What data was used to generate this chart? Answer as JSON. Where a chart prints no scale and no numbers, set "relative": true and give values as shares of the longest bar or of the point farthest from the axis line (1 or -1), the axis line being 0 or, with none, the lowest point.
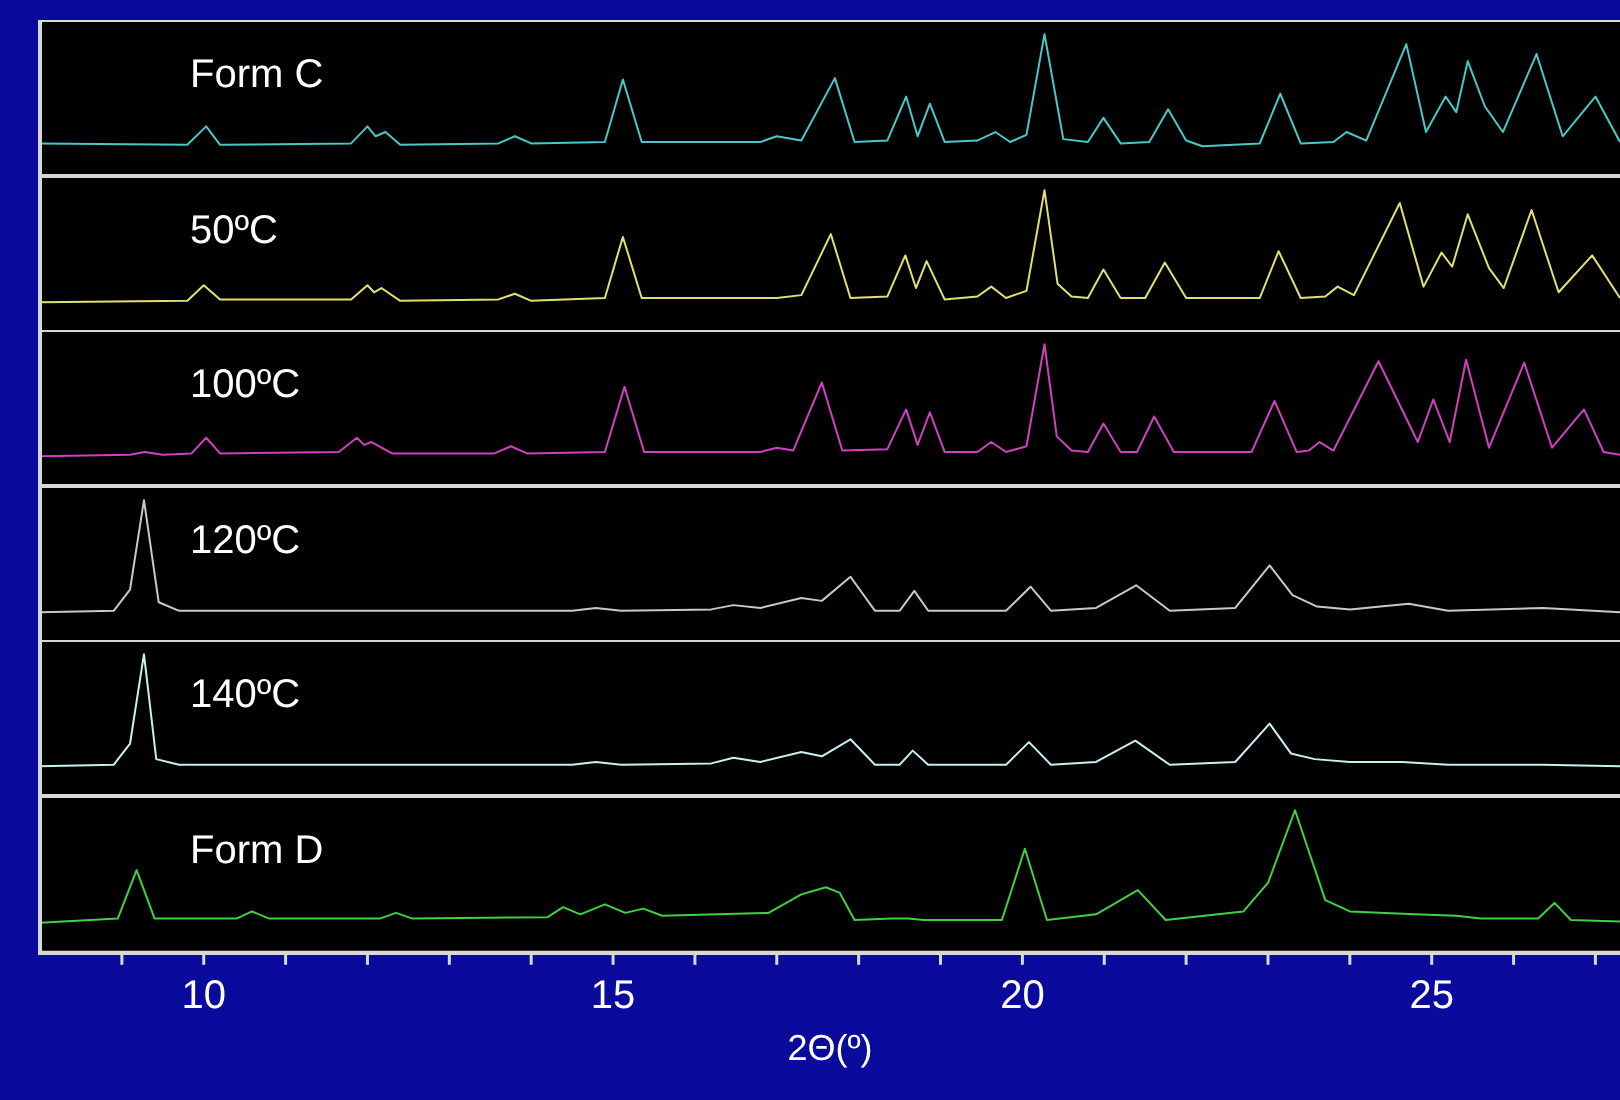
{
  "chart_data": [
    {
      "type": "line",
      "title": "Form C",
      "relative": true,
      "tick_labels": false,
      "color": "#48c8c8",
      "xlim": [
        8,
        27.3
      ],
      "x": [
        8.0,
        9.8,
        10.03,
        10.2,
        11.8,
        12.0,
        12.1,
        12.22,
        12.4,
        13.6,
        13.8,
        14.0,
        14.9,
        15.12,
        15.35,
        16.8,
        17.0,
        17.3,
        17.71,
        17.95,
        18.35,
        18.58,
        18.72,
        18.87,
        19.05,
        19.45,
        19.67,
        19.85,
        20.05,
        20.27,
        20.5,
        20.8,
        20.99,
        21.2,
        21.55,
        21.78,
        22.0,
        22.2,
        22.9,
        23.15,
        23.4,
        23.8,
        23.96,
        24.2,
        24.69,
        24.93,
        25.17,
        25.3,
        25.44,
        25.65,
        25.87,
        26.28,
        26.6,
        27.0,
        27.3
      ],
      "values": [
        0.23,
        0.22,
        0.35,
        0.22,
        0.23,
        0.35,
        0.28,
        0.31,
        0.22,
        0.23,
        0.28,
        0.23,
        0.24,
        0.68,
        0.24,
        0.24,
        0.28,
        0.25,
        0.69,
        0.24,
        0.25,
        0.56,
        0.28,
        0.51,
        0.24,
        0.25,
        0.31,
        0.24,
        0.29,
        1.0,
        0.26,
        0.24,
        0.41,
        0.23,
        0.24,
        0.47,
        0.25,
        0.21,
        0.23,
        0.58,
        0.23,
        0.24,
        0.31,
        0.25,
        0.93,
        0.31,
        0.56,
        0.45,
        0.81,
        0.49,
        0.31,
        0.86,
        0.28,
        0.56,
        0.24
      ]
    },
    {
      "type": "line",
      "title": "50ºC",
      "relative": true,
      "tick_labels": false,
      "color": "#e0e070",
      "xlim": [
        8,
        27.3
      ],
      "x": [
        8.0,
        9.8,
        10.0,
        10.2,
        11.8,
        12.0,
        12.08,
        12.17,
        12.4,
        13.6,
        13.8,
        14.0,
        14.9,
        15.12,
        15.35,
        17.0,
        17.3,
        17.66,
        17.9,
        18.35,
        18.57,
        18.7,
        18.83,
        19.05,
        19.45,
        19.62,
        19.8,
        20.05,
        20.27,
        20.43,
        20.6,
        20.8,
        20.99,
        21.2,
        21.5,
        21.74,
        22.0,
        22.9,
        23.13,
        23.4,
        23.7,
        23.85,
        24.05,
        24.61,
        24.9,
        25.12,
        25.25,
        25.44,
        25.7,
        25.88,
        26.22,
        26.55,
        26.96,
        27.3
      ],
      "values": [
        0.21,
        0.22,
        0.33,
        0.23,
        0.23,
        0.33,
        0.28,
        0.31,
        0.22,
        0.23,
        0.27,
        0.22,
        0.24,
        0.67,
        0.24,
        0.24,
        0.26,
        0.69,
        0.24,
        0.25,
        0.54,
        0.31,
        0.5,
        0.23,
        0.25,
        0.32,
        0.24,
        0.29,
        1.0,
        0.34,
        0.25,
        0.24,
        0.44,
        0.24,
        0.24,
        0.49,
        0.24,
        0.24,
        0.57,
        0.24,
        0.25,
        0.32,
        0.26,
        0.91,
        0.32,
        0.56,
        0.46,
        0.83,
        0.45,
        0.31,
        0.86,
        0.28,
        0.54,
        0.24
      ]
    },
    {
      "type": "line",
      "title": "100ºC",
      "relative": true,
      "tick_labels": false,
      "color": "#d040c0",
      "xlim": [
        8,
        27.3
      ],
      "x": [
        8.0,
        9.1,
        9.28,
        9.5,
        9.85,
        10.03,
        10.2,
        11.65,
        11.87,
        11.96,
        12.05,
        12.3,
        13.55,
        13.75,
        13.95,
        14.9,
        15.14,
        15.38,
        16.8,
        17.0,
        17.2,
        17.55,
        17.8,
        18.35,
        18.58,
        18.72,
        18.87,
        19.05,
        19.45,
        19.62,
        19.8,
        20.05,
        20.27,
        20.42,
        20.6,
        20.8,
        20.99,
        21.2,
        21.4,
        21.61,
        21.85,
        22.8,
        23.08,
        23.35,
        23.5,
        23.63,
        23.8,
        24.35,
        24.83,
        25.02,
        25.22,
        25.42,
        25.7,
        26.13,
        26.47,
        26.86,
        27.1,
        27.3
      ],
      "values": [
        0.21,
        0.22,
        0.24,
        0.22,
        0.23,
        0.34,
        0.23,
        0.24,
        0.34,
        0.29,
        0.31,
        0.23,
        0.23,
        0.28,
        0.23,
        0.24,
        0.7,
        0.24,
        0.24,
        0.27,
        0.25,
        0.73,
        0.25,
        0.26,
        0.54,
        0.29,
        0.52,
        0.24,
        0.24,
        0.31,
        0.24,
        0.28,
        1.0,
        0.35,
        0.25,
        0.24,
        0.44,
        0.24,
        0.24,
        0.49,
        0.24,
        0.24,
        0.6,
        0.24,
        0.25,
        0.31,
        0.25,
        0.88,
        0.31,
        0.61,
        0.31,
        0.89,
        0.27,
        0.87,
        0.27,
        0.54,
        0.24,
        0.22
      ]
    },
    {
      "type": "line",
      "title": "120ºC",
      "relative": true,
      "tick_labels": false,
      "color": "#c8c8c8",
      "xlim": [
        8,
        27.3
      ],
      "x": [
        8.0,
        8.9,
        9.1,
        9.27,
        9.45,
        9.7,
        12.0,
        14.5,
        14.79,
        15.1,
        16.2,
        16.47,
        16.8,
        17.3,
        17.55,
        17.9,
        18.2,
        18.5,
        18.68,
        18.85,
        19.8,
        20.1,
        20.35,
        20.9,
        21.39,
        21.8,
        22.6,
        23.02,
        23.3,
        23.6,
        24.0,
        24.72,
        25.2,
        26.36,
        27.3
      ],
      "values": [
        0.21,
        0.22,
        0.37,
        1.0,
        0.28,
        0.22,
        0.22,
        0.22,
        0.24,
        0.22,
        0.23,
        0.26,
        0.24,
        0.31,
        0.29,
        0.46,
        0.22,
        0.22,
        0.36,
        0.22,
        0.22,
        0.39,
        0.22,
        0.24,
        0.4,
        0.22,
        0.24,
        0.54,
        0.33,
        0.25,
        0.23,
        0.27,
        0.22,
        0.24,
        0.21
      ]
    },
    {
      "type": "line",
      "title": "140ºC",
      "relative": true,
      "tick_labels": false,
      "color": "#c8f0f0",
      "xlim": [
        8,
        27.3
      ],
      "x": [
        8.0,
        8.9,
        9.1,
        9.27,
        9.42,
        9.7,
        12.0,
        14.5,
        14.79,
        15.1,
        16.2,
        16.47,
        16.8,
        17.3,
        17.55,
        17.9,
        18.2,
        18.5,
        18.66,
        18.85,
        19.8,
        20.08,
        20.35,
        20.9,
        21.38,
        21.8,
        22.6,
        23.02,
        23.28,
        23.57,
        24.0,
        24.64,
        25.2,
        26.36,
        27.3
      ],
      "values": [
        0.21,
        0.22,
        0.37,
        1.0,
        0.26,
        0.22,
        0.22,
        0.22,
        0.24,
        0.22,
        0.23,
        0.27,
        0.24,
        0.31,
        0.28,
        0.4,
        0.22,
        0.22,
        0.32,
        0.22,
        0.22,
        0.38,
        0.22,
        0.24,
        0.39,
        0.22,
        0.24,
        0.51,
        0.3,
        0.26,
        0.24,
        0.24,
        0.22,
        0.22,
        0.21
      ]
    },
    {
      "type": "line",
      "title": "Form D",
      "relative": true,
      "tick_labels": "x",
      "color": "#40d040",
      "xlim": [
        8,
        27.3
      ],
      "xlabel": "2Θ(º)",
      "xticks": [
        {
          "value": 9,
          "label": null
        },
        10,
        {
          "value": 11,
          "label": null
        },
        {
          "value": 12,
          "label": null
        },
        {
          "value": 13,
          "label": null
        },
        {
          "value": 14,
          "label": null
        },
        15,
        {
          "value": 16,
          "label": null
        },
        {
          "value": 17,
          "label": null
        },
        {
          "value": 18,
          "label": null
        },
        {
          "value": 19,
          "label": null
        },
        20,
        {
          "value": 21,
          "label": null
        },
        {
          "value": 22,
          "label": null
        },
        {
          "value": 23,
          "label": null
        },
        {
          "value": 24,
          "label": null
        },
        25,
        {
          "value": 26,
          "label": null
        },
        {
          "value": 27,
          "label": null
        }
      ],
      "x": [
        8.0,
        8.95,
        9.18,
        9.4,
        10.4,
        10.59,
        10.8,
        12.15,
        12.35,
        12.55,
        14.2,
        14.39,
        14.6,
        14.9,
        15.15,
        15.37,
        15.6,
        16.9,
        17.3,
        17.6,
        17.77,
        17.95,
        18.4,
        18.6,
        18.8,
        19.75,
        20.03,
        20.3,
        20.9,
        21.41,
        21.75,
        22.7,
        23.0,
        23.33,
        23.7,
        24.0,
        24.79,
        25.3,
        25.6,
        26.3,
        26.5,
        26.7,
        27.3
      ],
      "values": [
        0.21,
        0.24,
        0.58,
        0.24,
        0.24,
        0.29,
        0.24,
        0.24,
        0.28,
        0.24,
        0.25,
        0.32,
        0.27,
        0.34,
        0.28,
        0.31,
        0.26,
        0.28,
        0.41,
        0.46,
        0.42,
        0.23,
        0.24,
        0.24,
        0.23,
        0.23,
        0.73,
        0.23,
        0.27,
        0.44,
        0.23,
        0.29,
        0.49,
        1.0,
        0.37,
        0.29,
        0.27,
        0.26,
        0.24,
        0.24,
        0.35,
        0.23,
        0.22
      ]
    }
  ]
}
